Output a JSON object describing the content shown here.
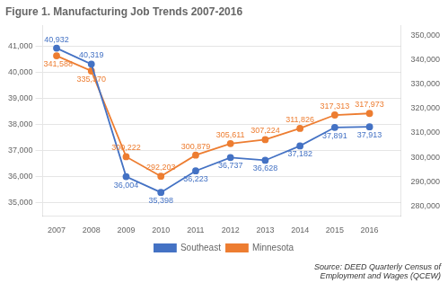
{
  "chart_data": {
    "type": "line",
    "title": "Figure 1. Manufacturing Job Trends 2007-2016",
    "x": [
      2007,
      2008,
      2009,
      2010,
      2011,
      2012,
      2013,
      2014,
      2015,
      2016
    ],
    "xlim": [
      2006.6,
      2016.9
    ],
    "xticks": [
      2007,
      2008,
      2009,
      2010,
      2011,
      2012,
      2013,
      2014,
      2015,
      2016
    ],
    "series": [
      {
        "name": "Southeast",
        "color": "#4472C4",
        "marker": "circle",
        "values": [
          40932,
          40319,
          36004,
          35398,
          36223,
          36737,
          36628,
          37182,
          37891,
          37913
        ],
        "value_labels": [
          "40,932",
          "40,319",
          "36,004",
          "35,398",
          "36,223",
          "36,737",
          "36,628",
          "37,182",
          "37,891",
          "37,913"
        ]
      },
      {
        "name": "Minnesota",
        "color": "#ED7D31",
        "marker": "circle",
        "axis": "y2",
        "values": [
          341588,
          335370,
          300222,
          292203,
          300879,
          305611,
          307224,
          311826,
          317313,
          317973
        ],
        "value_labels": [
          "341,588",
          "335,370",
          "300,222",
          "292,203",
          "300,879",
          "305,611",
          "307,224",
          "311,826",
          "317,313",
          "317,973"
        ]
      }
    ],
    "ylim": [
      34500,
      41800
    ],
    "yticks": [
      {
        "value": 35000,
        "label": "35,000"
      },
      {
        "value": 36000,
        "label": "36,000"
      },
      {
        "value": 37000,
        "label": "37,000"
      },
      {
        "value": 38000,
        "label": "38,000"
      },
      {
        "value": 39000,
        "label": "39,000"
      },
      {
        "value": 40000,
        "label": "40,000"
      },
      {
        "value": 41000,
        "label": "41,000"
      }
    ],
    "y2lim": [
      276000,
      354000
    ],
    "y2ticks": [
      {
        "value": 280000,
        "label": "280,000"
      },
      {
        "value": 290000,
        "label": "290,000"
      },
      {
        "value": 300000,
        "label": "300,000"
      },
      {
        "value": 310000,
        "label": "310,000"
      },
      {
        "value": 320000,
        "label": "320,000"
      },
      {
        "value": 330000,
        "label": "330,000"
      },
      {
        "value": 340000,
        "label": "340,000"
      },
      {
        "value": 350000,
        "label": "350,000"
      }
    ],
    "grid": true,
    "legend": "bottom",
    "data_labels": true,
    "annotations": [
      "Source: DEED Quarterly Census of\nEmployment and Wages (QCEW)"
    ]
  }
}
